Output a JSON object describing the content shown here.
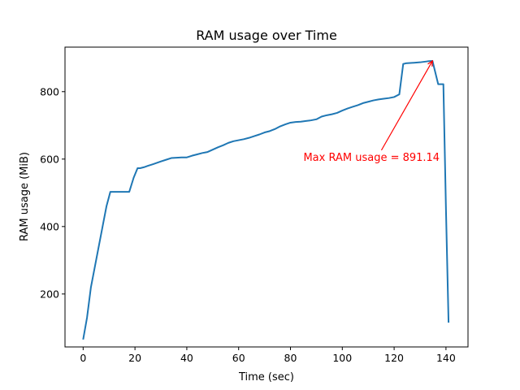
{
  "chart_data": {
    "type": "line",
    "title": "RAM usage over Time",
    "xlabel": "Time (sec)",
    "ylabel": "RAM usage (MiB)",
    "xlim": [
      -7,
      148.5
    ],
    "ylim": [
      43,
      932
    ],
    "xticks": [
      0,
      20,
      40,
      60,
      80,
      100,
      120,
      140
    ],
    "yticks": [
      200,
      400,
      600,
      800
    ],
    "grid": false,
    "series": [
      {
        "color": "#1f77b4",
        "x": [
          0,
          1.5,
          3,
          5,
          7.5,
          9,
          10.5,
          12,
          14,
          16,
          17.8,
          19.5,
          21,
          22,
          23.5,
          25,
          27,
          30,
          32,
          34,
          36,
          38,
          40,
          42,
          44,
          46,
          48,
          50,
          52,
          54,
          56,
          58,
          60,
          62,
          64,
          66,
          68,
          70,
          72,
          74,
          76,
          78,
          80,
          82,
          84,
          86,
          88,
          90,
          92,
          94,
          96,
          98,
          100,
          102,
          104,
          106,
          108,
          110,
          112,
          114,
          116,
          118,
          120,
          122,
          123.5,
          124.5,
          130,
          133,
          134.8,
          137,
          139,
          140,
          141
        ],
        "y": [
          65,
          130,
          220,
          300,
          400,
          460,
          503,
          503,
          503,
          503,
          503,
          545,
          573,
          573,
          576,
          580,
          585,
          593,
          598,
          603,
          604,
          605,
          605,
          610,
          614,
          618,
          621,
          628,
          635,
          641,
          648,
          653,
          656,
          659,
          663,
          668,
          673,
          679,
          683,
          689,
          697,
          703,
          708,
          710,
          711,
          713,
          715,
          718,
          726,
          730,
          733,
          737,
          744,
          750,
          755,
          760,
          766,
          770,
          774,
          777,
          779,
          781,
          784,
          792,
          882,
          884,
          887,
          890,
          891.14,
          822,
          822,
          450,
          115
        ]
      }
    ],
    "annotations": [
      {
        "text": "Max RAM usage = 891.14",
        "color": "#ff0000",
        "xy": [
          134.8,
          891.14
        ],
        "xytext": [
          85,
          595
        ]
      }
    ]
  }
}
